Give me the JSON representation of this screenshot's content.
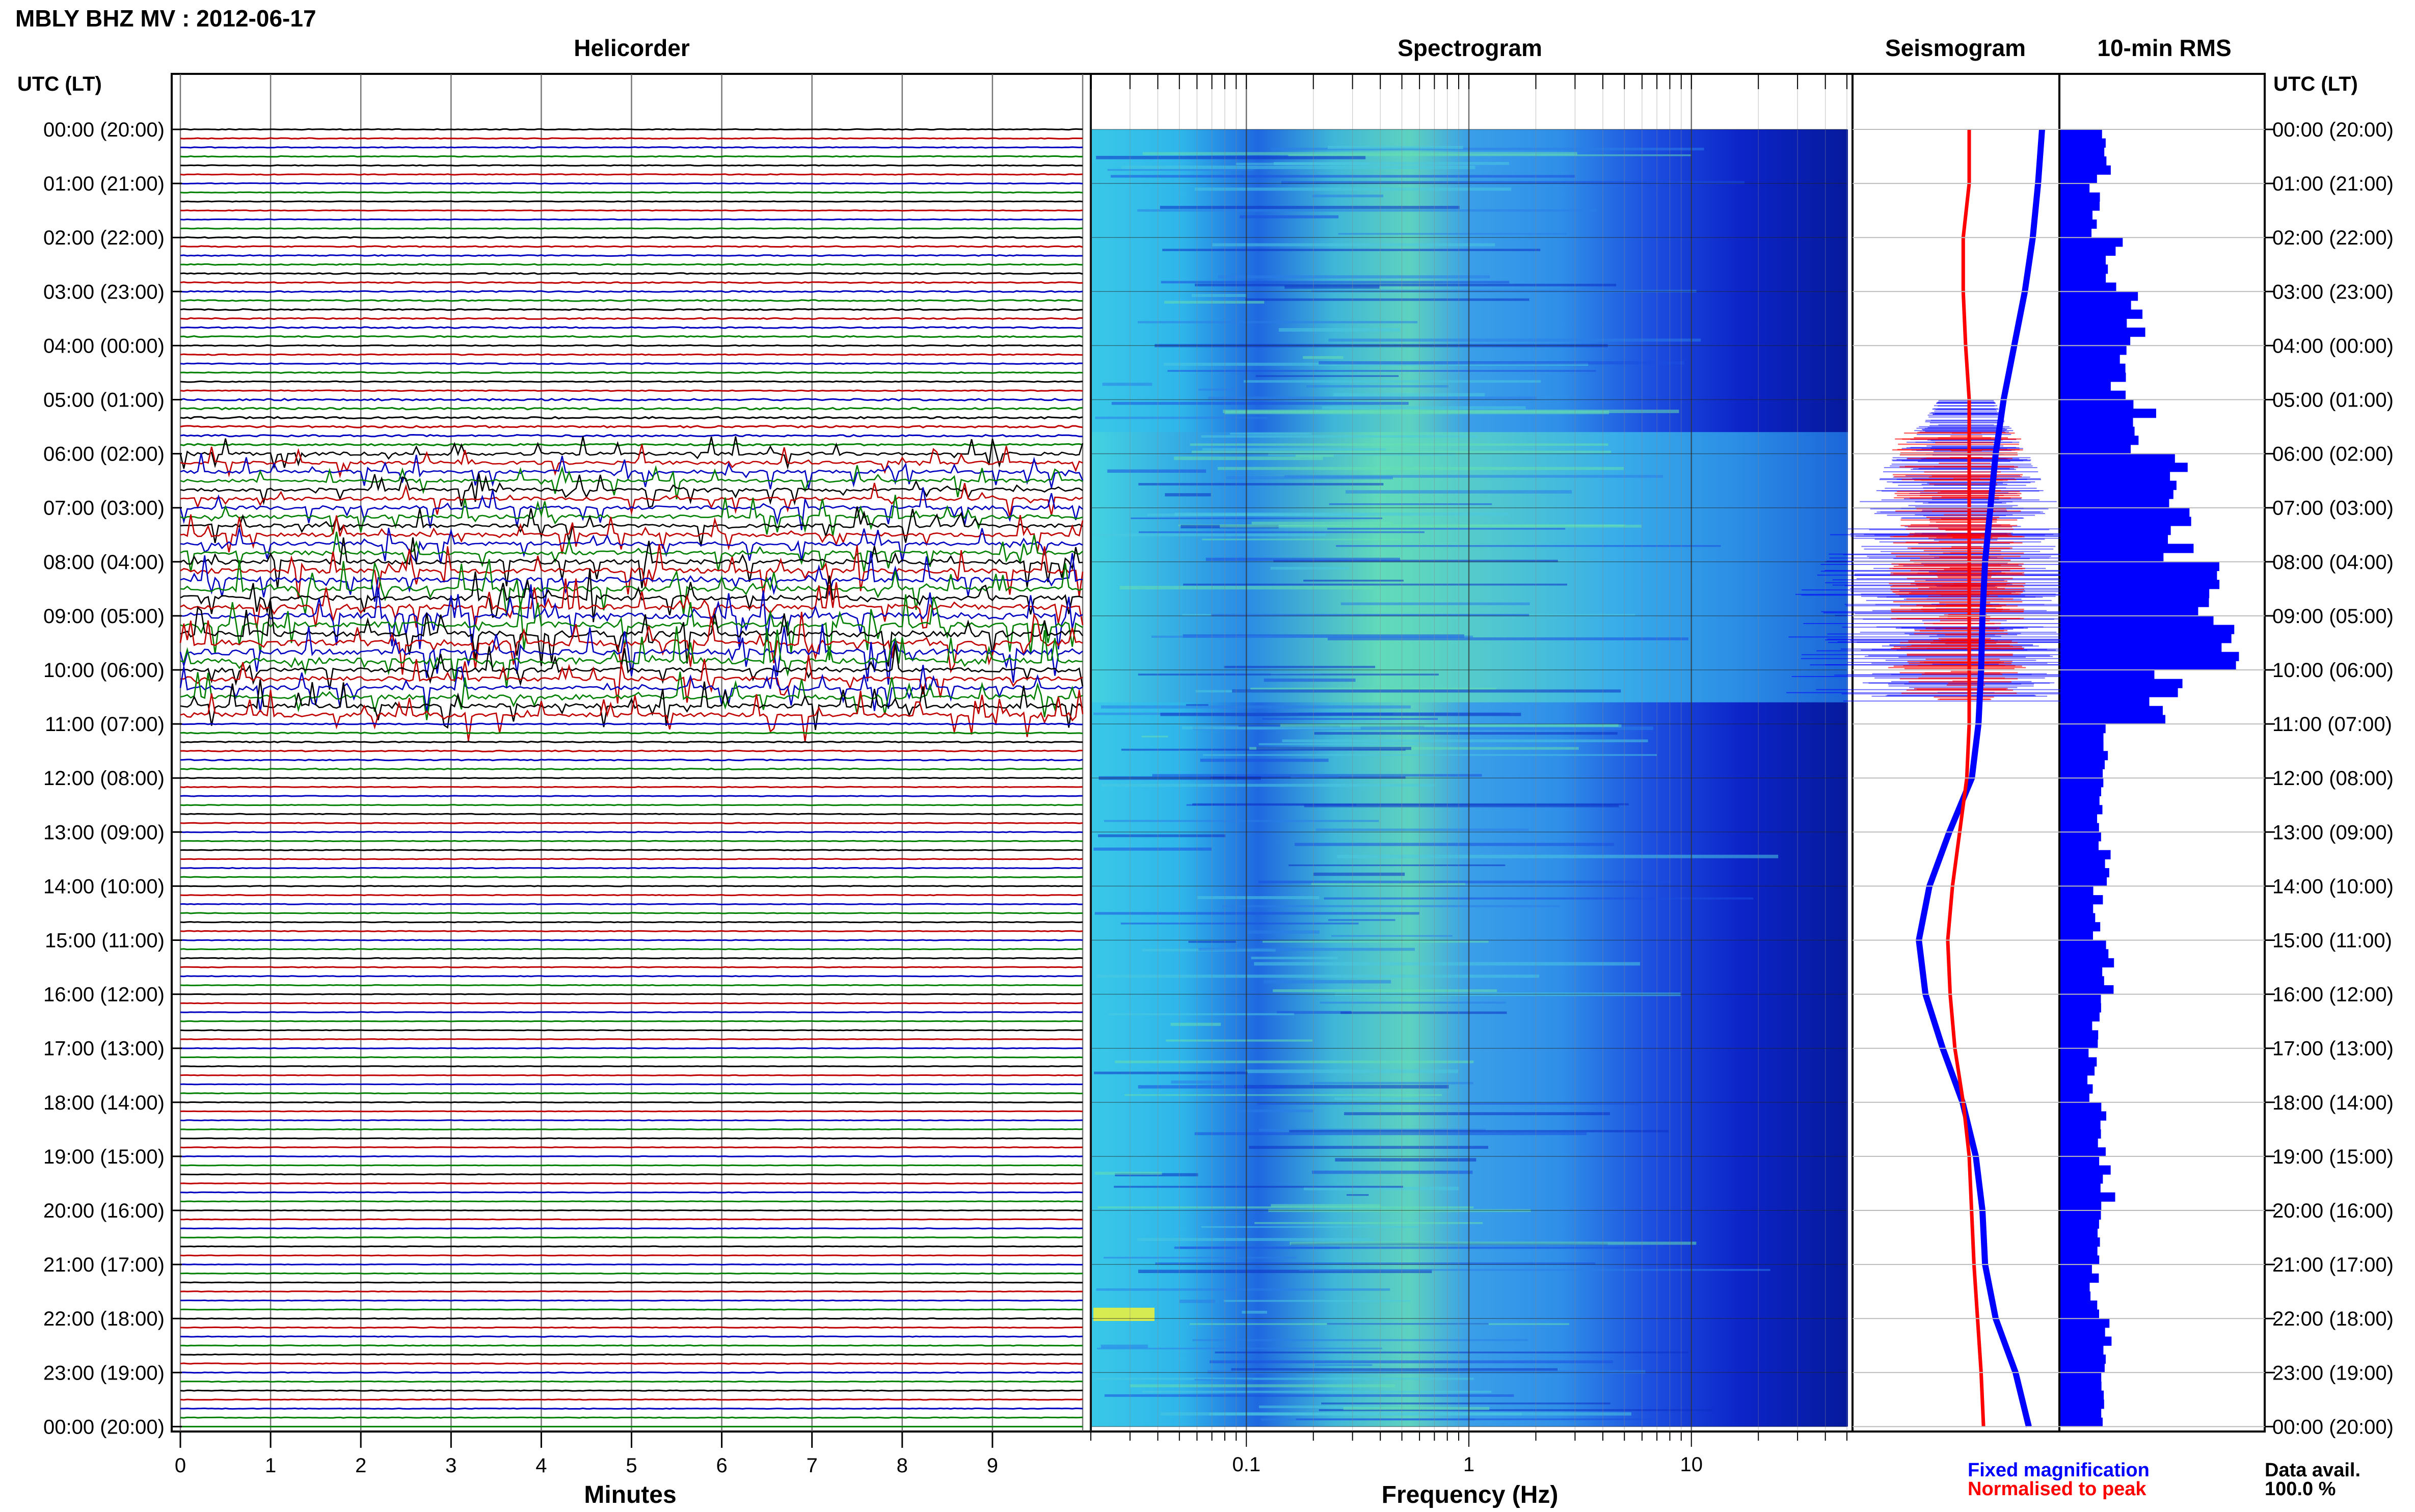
{
  "header": {
    "title": "MBLY BHZ MV : 2012-06-17",
    "tz_label_left": "UTC (LT)",
    "tz_label_right": "UTC (LT)"
  },
  "panels": {
    "helicorder": "Helicorder",
    "spectrogram": "Spectrogram",
    "seismogram": "Seismogram",
    "rms": "10-min RMS"
  },
  "time_labels": [
    "00:00 (20:00)",
    "01:00 (21:00)",
    "02:00 (22:00)",
    "03:00 (23:00)",
    "04:00 (00:00)",
    "05:00 (01:00)",
    "06:00 (02:00)",
    "07:00 (03:00)",
    "08:00 (04:00)",
    "09:00 (05:00)",
    "10:00 (06:00)",
    "11:00 (07:00)",
    "12:00 (08:00)",
    "13:00 (09:00)",
    "14:00 (10:00)",
    "15:00 (11:00)",
    "16:00 (12:00)",
    "17:00 (13:00)",
    "18:00 (14:00)",
    "19:00 (15:00)",
    "20:00 (16:00)",
    "21:00 (17:00)",
    "22:00 (18:00)",
    "23:00 (19:00)",
    "00:00 (20:00)"
  ],
  "axes": {
    "minutes_label": "Minutes",
    "minute_ticks": [
      "0",
      "1",
      "2",
      "3",
      "4",
      "5",
      "6",
      "7",
      "8",
      "9"
    ],
    "frequency_label": "Frequency (Hz)",
    "frequency_ticks": [
      "0.1",
      "1",
      "10"
    ]
  },
  "legend": {
    "fixed": "Fixed magnification",
    "normalised": "Normalised to peak",
    "fixed_color": "#0000ff",
    "normalised_color": "#ff0000"
  },
  "footer": {
    "data_avail_label": "Data avail.",
    "data_avail_value": "100.0 %"
  },
  "colors": {
    "trace_cycle": [
      "#000000",
      "#c00000",
      "#0000c0",
      "#008000"
    ],
    "rms_bar": "#0000ff"
  },
  "chart_data": [
    {
      "type": "line",
      "title": "Helicorder",
      "xlabel": "Minutes",
      "xlim": [
        0,
        10
      ],
      "lines_per_hour": 6,
      "hours": 24,
      "activity_by_hour": [
        0.25,
        0.2,
        0.35,
        0.4,
        0.3,
        0.6,
        1.0,
        1.2,
        1.6,
        1.9,
        1.4,
        0.35,
        0.2,
        0.2,
        0.2,
        0.2,
        0.15,
        0.15,
        0.15,
        0.15,
        0.15,
        0.15,
        0.2,
        0.2
      ]
    },
    {
      "type": "heatmap",
      "title": "Spectrogram",
      "xlabel": "Frequency (Hz)",
      "xscale": "log",
      "xlim": [
        0.02,
        50
      ],
      "colormap": "jet",
      "note_rows": 24
    },
    {
      "type": "line",
      "title": "Seismogram",
      "series": [
        {
          "name": "Fixed magnification",
          "hours": [
            0,
            1,
            2,
            3,
            4,
            5,
            6,
            7,
            8,
            9,
            10,
            11,
            12,
            13,
            14,
            15,
            16,
            17,
            18,
            19,
            20,
            21,
            22,
            23,
            24
          ],
          "offset": [
            0.55,
            0.52,
            0.48,
            0.42,
            0.34,
            0.26,
            0.2,
            0.16,
            0.12,
            0.1,
            0.09,
            0.07,
            0.02,
            -0.15,
            -0.3,
            -0.38,
            -0.33,
            -0.2,
            -0.05,
            0.05,
            0.1,
            0.12,
            0.2,
            0.35,
            0.45
          ]
        },
        {
          "name": "Normalised to peak",
          "hours": [
            0,
            1,
            2,
            3,
            4,
            5,
            6,
            7,
            8,
            9,
            10,
            11,
            12,
            13,
            14,
            15,
            16,
            17,
            18,
            19,
            20,
            21,
            22,
            23,
            24
          ],
          "offset": [
            0.0,
            0.0,
            -0.05,
            -0.05,
            -0.03,
            0.0,
            0.0,
            0.0,
            0.0,
            0.0,
            0.0,
            0.0,
            -0.02,
            -0.08,
            -0.14,
            -0.18,
            -0.16,
            -0.12,
            -0.05,
            0.0,
            0.02,
            0.04,
            0.07,
            0.1,
            0.12
          ]
        }
      ]
    },
    {
      "type": "bar",
      "title": "10-min RMS",
      "orientation": "horizontal",
      "bin_minutes": 10,
      "rms_by_hour": [
        0.22,
        0.18,
        0.28,
        0.38,
        0.3,
        0.42,
        0.58,
        0.62,
        0.72,
        0.92,
        0.55,
        0.22,
        0.2,
        0.22,
        0.2,
        0.24,
        0.18,
        0.16,
        0.22,
        0.24,
        0.2,
        0.18,
        0.26,
        0.22
      ]
    }
  ]
}
